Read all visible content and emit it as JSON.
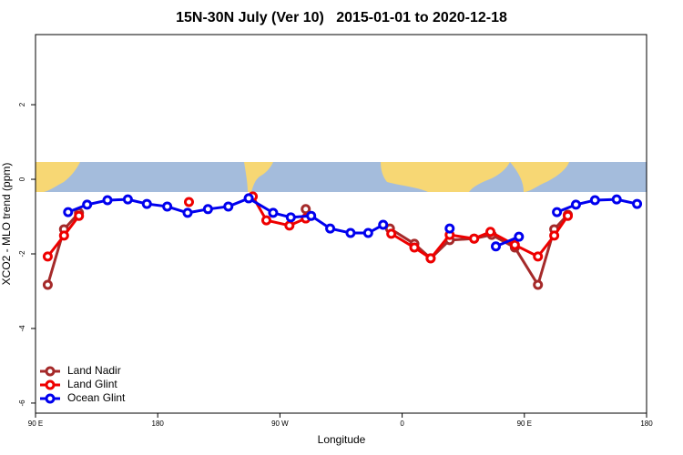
{
  "chart_data": {
    "type": "line",
    "title": "15N-30N July (Ver 10)   2015-01-01 to 2020-12-18",
    "xlabel": "Longitude",
    "ylabel": "XCO2 - MLO trend (ppm)",
    "xlim": [
      90,
      540
    ],
    "xticks": [
      {
        "value": 90,
        "label": "90 E"
      },
      {
        "value": 180,
        "label": "180"
      },
      {
        "value": 270,
        "label": "90 W"
      },
      {
        "value": 360,
        "label": "0"
      },
      {
        "value": 450,
        "label": "90 E"
      },
      {
        "value": 540,
        "label": "180"
      }
    ],
    "ylim": [
      -6.27,
      3.88
    ],
    "yticks": [
      2,
      0,
      -2,
      -4,
      -6
    ],
    "legend": "bottomleft",
    "series": [
      {
        "name": "Land Nadir",
        "color": "#a52a2a",
        "x": [
          99,
          111,
          122,
          null,
          289,
          null,
          351,
          369,
          381,
          395,
          413,
          426,
          443,
          460,
          472,
          482
        ],
        "values": [
          -2.83,
          -1.34,
          -0.9,
          null,
          -0.8,
          null,
          -1.32,
          -1.73,
          -2.12,
          -1.63,
          -1.59,
          -1.49,
          -1.83,
          -2.83,
          -1.34,
          -0.95
        ]
      },
      {
        "name": "Land Glint",
        "color": "#ee0000",
        "x": [
          99,
          111,
          122,
          null,
          203,
          null,
          250,
          260,
          277,
          289,
          null,
          352,
          369,
          381,
          395,
          413,
          425,
          443,
          460,
          472,
          482
        ],
        "values": [
          -2.07,
          -1.51,
          -0.98,
          null,
          -0.61,
          null,
          -0.46,
          -1.1,
          -1.24,
          -1.05,
          null,
          -1.46,
          -1.83,
          -2.12,
          -1.49,
          -1.59,
          -1.41,
          -1.76,
          -2.07,
          -1.51,
          -0.98
        ]
      },
      {
        "name": "Ocean Glint",
        "color": "#0000ee",
        "x": [
          114,
          128,
          143,
          158,
          172,
          187,
          202,
          217,
          232,
          247,
          265,
          278,
          293,
          307,
          322,
          335,
          346,
          null,
          395,
          null,
          429,
          446,
          null,
          474,
          488,
          502,
          518,
          533
        ],
        "values": [
          -0.88,
          -0.68,
          -0.56,
          -0.54,
          -0.66,
          -0.73,
          -0.9,
          -0.8,
          -0.73,
          -0.51,
          -0.9,
          -1.02,
          -0.98,
          -1.32,
          -1.44,
          -1.44,
          -1.22,
          null,
          -1.32,
          null,
          -1.8,
          -1.54,
          null,
          -0.88,
          -0.68,
          -0.56,
          -0.54,
          -0.66
        ]
      }
    ]
  }
}
